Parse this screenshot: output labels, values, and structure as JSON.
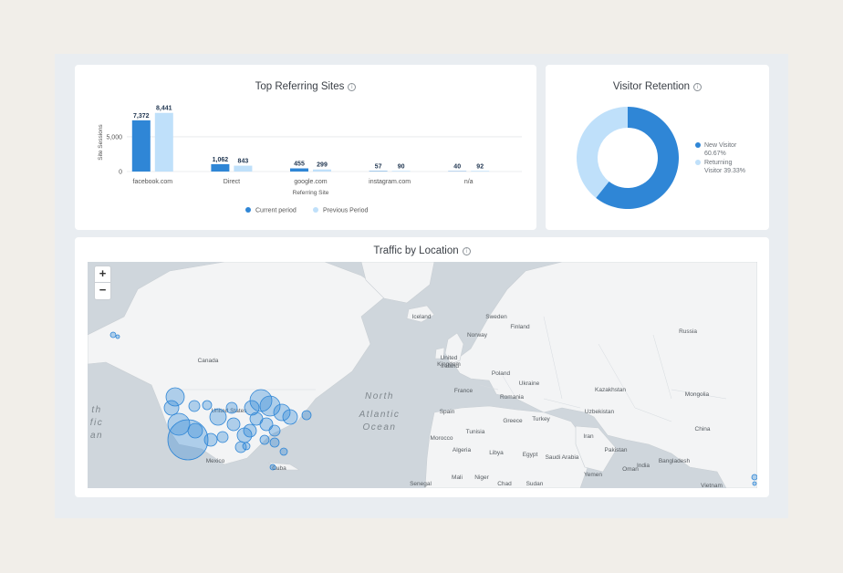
{
  "referring": {
    "title": "Top Referring Sites",
    "info_icon": "info-icon"
  },
  "retention": {
    "title": "Visitor Retention",
    "info_icon": "info-icon"
  },
  "location": {
    "title": "Traffic by Location",
    "info_icon": "info-icon",
    "zoom_in": "+",
    "zoom_out": "−",
    "labels": [
      "Iceland",
      "Sweden",
      "Finland",
      "Norway",
      "Russia",
      "Canada",
      "United Kingdom",
      "Poland",
      "Ireland",
      "Ukraine",
      "Kazakhstan",
      "France",
      "Romania",
      "Mongolia",
      "Spain",
      "Uzbekistan",
      "Greece",
      "Turkey",
      "United States",
      "Morocco",
      "Tunisia",
      "Iran",
      "China",
      "Algeria",
      "Libya",
      "Egypt",
      "Saudi Arabia",
      "Pakistan",
      "India",
      "Oman",
      "Bangladesh",
      "Mexico",
      "Cuba",
      "Mali",
      "Niger",
      "Chad",
      "Sudan",
      "Senegal",
      "Yemen",
      "Vietnam"
    ],
    "ocean_top": "North",
    "ocean_mid": "Atlantic",
    "ocean_bot": "Ocean",
    "pacific_frag": [
      "th",
      "fic",
      "an"
    ]
  },
  "chart_data": [
    {
      "type": "bar",
      "title": "Top Referring Sites",
      "xlabel": "Referring Site",
      "ylabel": "Site Sessions",
      "categories": [
        "facebook.com",
        "Direct",
        "google.com",
        "instagram.com",
        "n/a"
      ],
      "series": [
        {
          "name": "Current period",
          "values": [
            7372,
            1062,
            455,
            57,
            40
          ],
          "labels": [
            "7,372",
            "1,062",
            "455",
            "57",
            "40"
          ],
          "color": "#2f86d6"
        },
        {
          "name": "Previous Period",
          "values": [
            8441,
            843,
            299,
            90,
            92
          ],
          "labels": [
            "8,441",
            "843",
            "299",
            "90",
            "92"
          ],
          "color": "#bfe0fa"
        }
      ],
      "yticks": [
        0,
        5000
      ],
      "ytick_labels": [
        "0",
        "5,000"
      ],
      "ylim": [
        0,
        8800
      ],
      "legend": "bottom",
      "grid": true
    },
    {
      "type": "pie",
      "title": "Visitor Retention",
      "donut": true,
      "slices": [
        {
          "name": "New Visitor",
          "value": 60.67,
          "label": "60.67%",
          "color": "#2f86d6"
        },
        {
          "name": "Returning Visitor",
          "value": 39.33,
          "label": "39.33%",
          "color": "#bfe0fa"
        }
      ],
      "legend_lines": [
        [
          "New Visitor",
          "60.67%"
        ],
        [
          "Returning",
          "Visitor 39.33%"
        ]
      ],
      "legend": "right"
    }
  ]
}
